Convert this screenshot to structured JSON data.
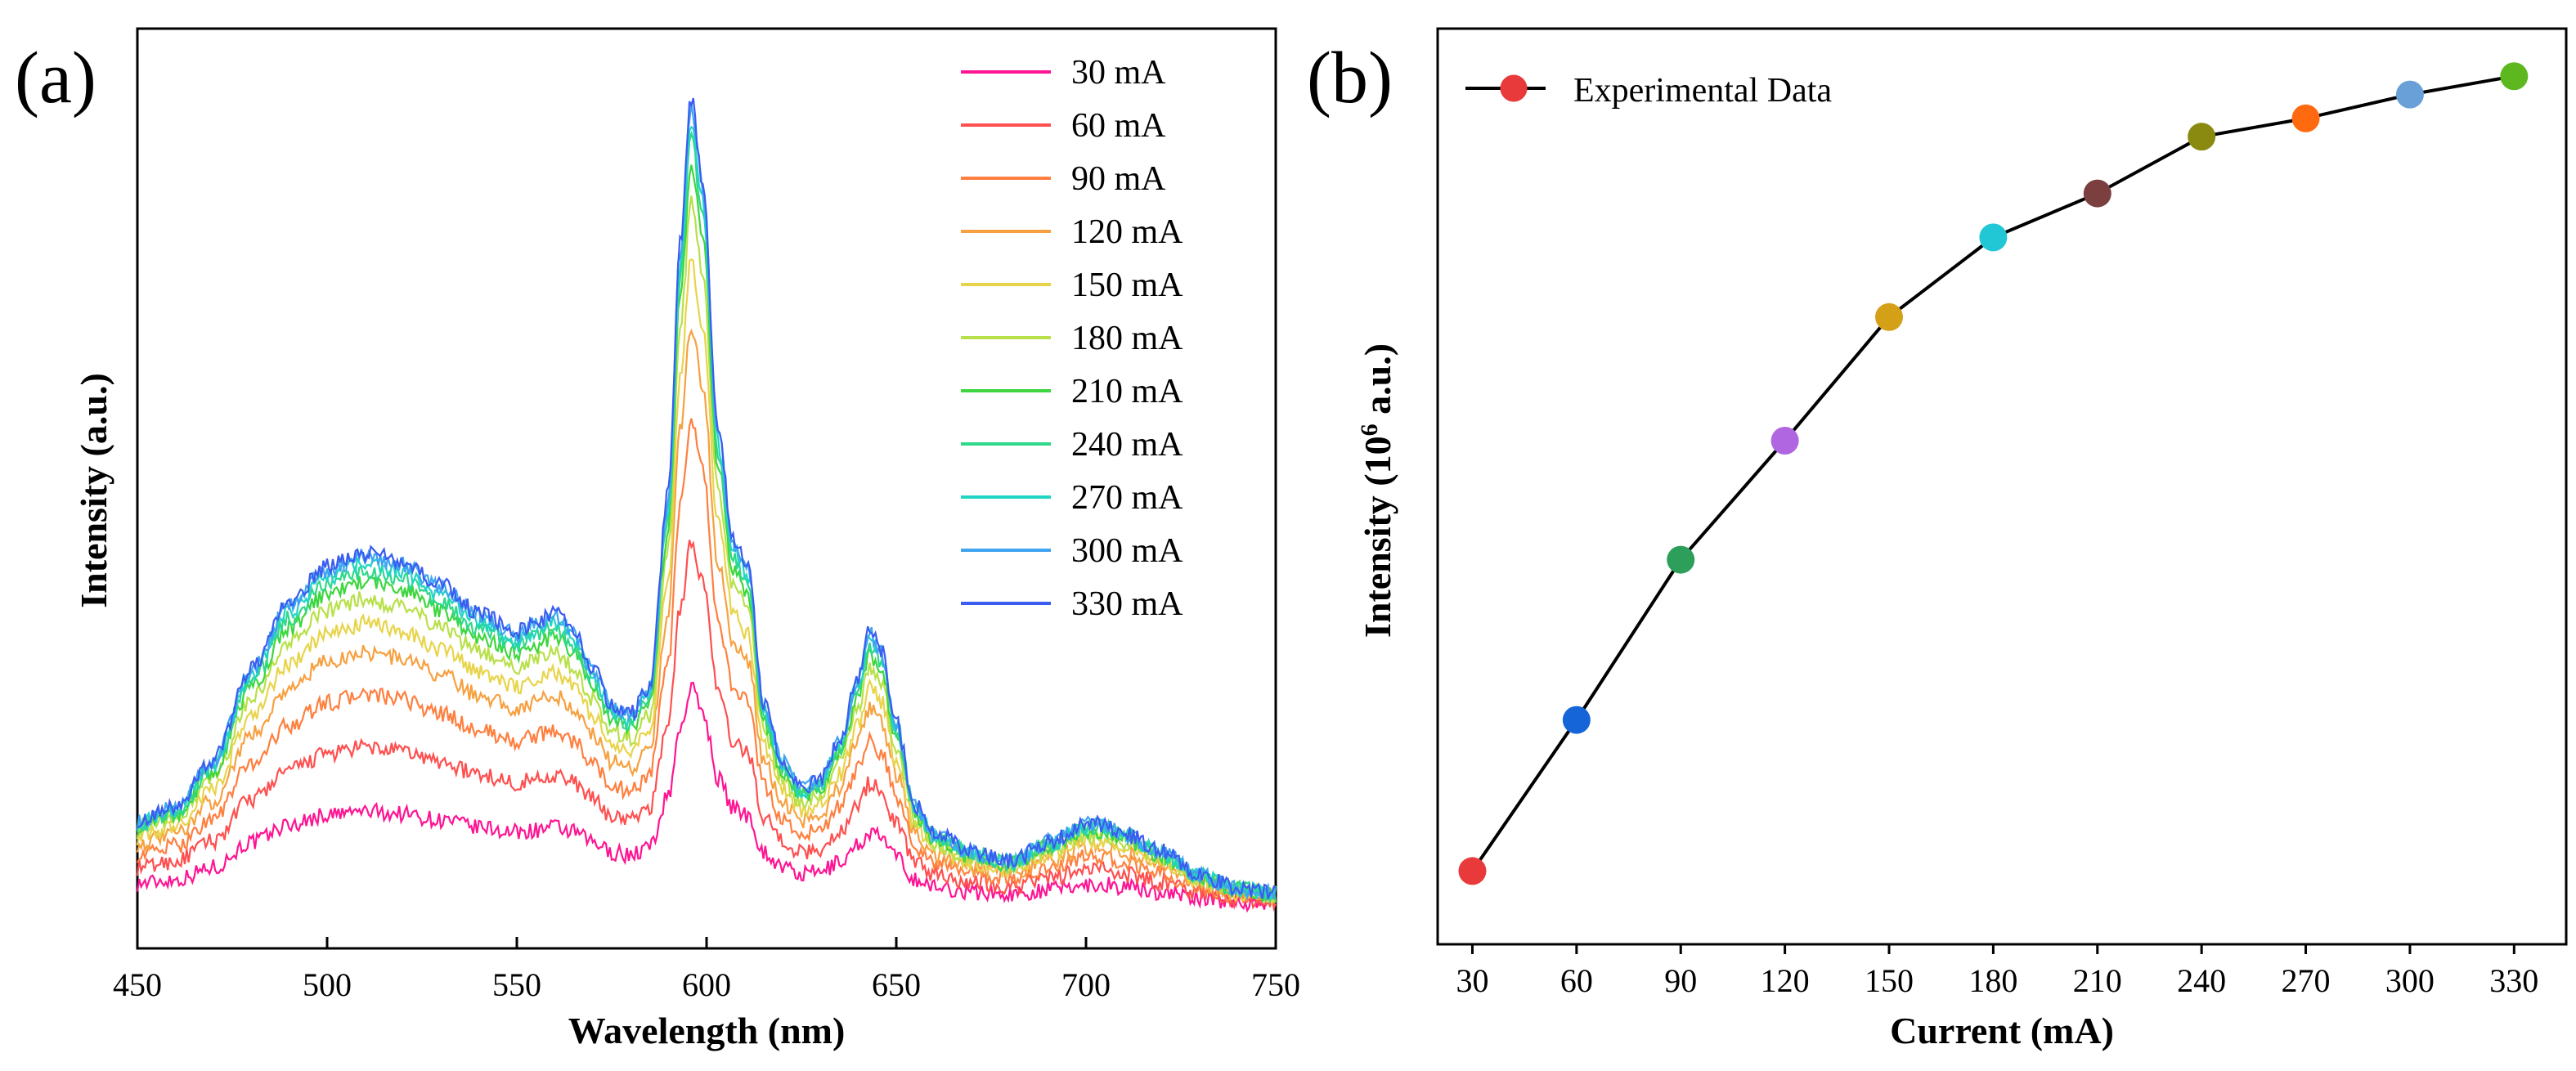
{
  "chart_data": [
    {
      "panel": "(a)",
      "type": "line",
      "title": "",
      "xlabel": "Wavelength (nm)",
      "ylabel": "Intensity (a.u.)",
      "xlim": [
        450,
        750
      ],
      "ylim": [
        0,
        1
      ],
      "x_ticks": [
        450,
        500,
        550,
        600,
        650,
        700,
        750
      ],
      "grid": false,
      "legend_position": "top-right",
      "series": [
        {
          "name": "30 mA",
          "color": "#ff1493",
          "scale": 0.27
        },
        {
          "name": "60 mA",
          "color": "#ff4f4f",
          "scale": 0.45
        },
        {
          "name": "90 mA",
          "color": "#ff7f3f",
          "scale": 0.6
        },
        {
          "name": "120 mA",
          "color": "#f7a040",
          "scale": 0.72
        },
        {
          "name": "150 mA",
          "color": "#e8d44a",
          "scale": 0.8
        },
        {
          "name": "180 mA",
          "color": "#b8e04a",
          "scale": 0.87
        },
        {
          "name": "210 mA",
          "color": "#3ed63e",
          "scale": 0.92
        },
        {
          "name": "240 mA",
          "color": "#2ed88a",
          "scale": 0.95
        },
        {
          "name": "270 mA",
          "color": "#21d5c4",
          "scale": 0.97
        },
        {
          "name": "300 mA",
          "color": "#3fa4f0",
          "scale": 0.99
        },
        {
          "name": "330 mA",
          "color": "#3a5cf0",
          "scale": 1.0
        }
      ],
      "spectrum_peaks_nm": [
        512,
        558,
        596,
        609,
        643,
        704
      ],
      "x": [
        450,
        460,
        470,
        480,
        490,
        500,
        510,
        520,
        530,
        540,
        550,
        555,
        560,
        565,
        570,
        575,
        580,
        585,
        590,
        593,
        596,
        599,
        603,
        607,
        611,
        615,
        620,
        625,
        630,
        635,
        640,
        643,
        646,
        650,
        655,
        660,
        670,
        680,
        690,
        700,
        705,
        710,
        720,
        730,
        740,
        750
      ],
      "profile_330mA": [
        0.095,
        0.11,
        0.16,
        0.26,
        0.33,
        0.37,
        0.385,
        0.375,
        0.35,
        0.32,
        0.3,
        0.31,
        0.32,
        0.3,
        0.26,
        0.22,
        0.21,
        0.24,
        0.45,
        0.72,
        0.88,
        0.79,
        0.52,
        0.4,
        0.37,
        0.22,
        0.16,
        0.13,
        0.14,
        0.18,
        0.25,
        0.3,
        0.28,
        0.2,
        0.11,
        0.08,
        0.06,
        0.05,
        0.07,
        0.09,
        0.09,
        0.08,
        0.06,
        0.035,
        0.02,
        0.015
      ]
    },
    {
      "panel": "(b)",
      "type": "scatter",
      "title": "",
      "xlabel": "Current (mA)",
      "ylabel": "Intensity (10",
      "ylabel_sup": "6",
      "ylabel_end": " a.u.)",
      "legend": "Experimental Data",
      "legend_position": "top-left",
      "grid": false,
      "xlim": [
        20,
        345
      ],
      "ylim": [
        0,
        1
      ],
      "categories": [
        "30",
        "60",
        "90",
        "120",
        "150",
        "180",
        "210",
        "240",
        "270",
        "300",
        "330"
      ],
      "x": [
        30,
        60,
        90,
        120,
        150,
        180,
        210,
        240,
        270,
        300,
        330
      ],
      "values": [
        0.08,
        0.245,
        0.42,
        0.55,
        0.685,
        0.772,
        0.82,
        0.882,
        0.902,
        0.928,
        0.948
      ],
      "point_colors": [
        "#e83a3a",
        "#1565d8",
        "#2e9e5b",
        "#b066e0",
        "#d4a017",
        "#22c7d6",
        "#7b3f3f",
        "#8a8a10",
        "#ff6a10",
        "#6aa0d8",
        "#5cb81e"
      ]
    }
  ]
}
